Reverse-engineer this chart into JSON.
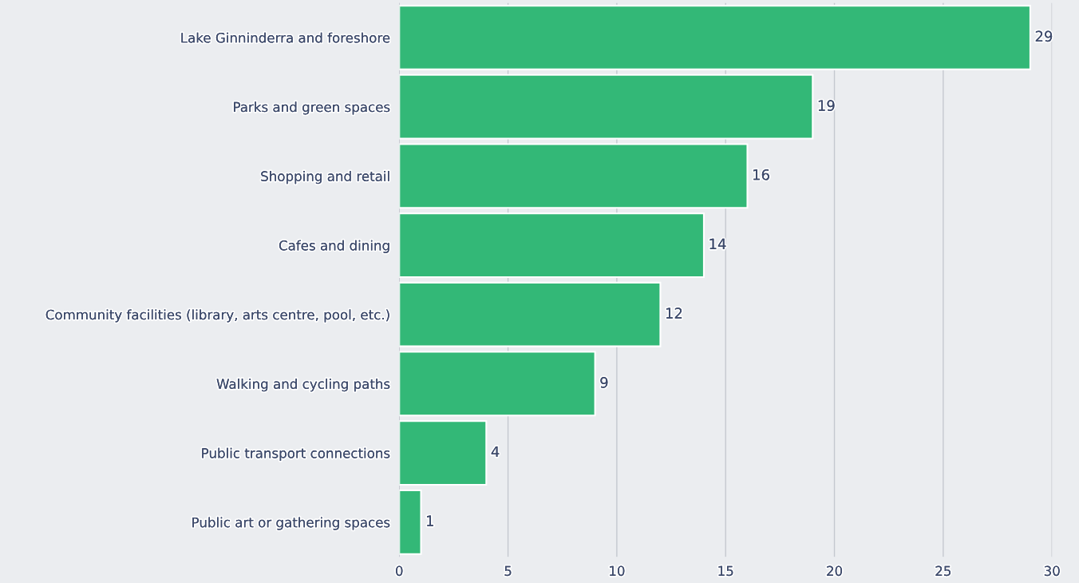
{
  "chart_data": {
    "type": "bar",
    "orientation": "horizontal",
    "categories": [
      "Lake Ginninderra and foreshore",
      "Parks and green spaces",
      "Shopping and retail",
      "Cafes and dining",
      "Community facilities (library, arts centre, pool, etc.)",
      "Walking and cycling paths",
      "Public transport connections",
      "Public art or gathering spaces"
    ],
    "values": [
      29,
      19,
      16,
      14,
      12,
      9,
      4,
      1
    ],
    "color": "#33b877",
    "xlim": [
      0,
      30
    ],
    "xticks": [
      0,
      5,
      10,
      15,
      20,
      25,
      30
    ],
    "grid": "x",
    "data_labels": true,
    "legend": false
  }
}
